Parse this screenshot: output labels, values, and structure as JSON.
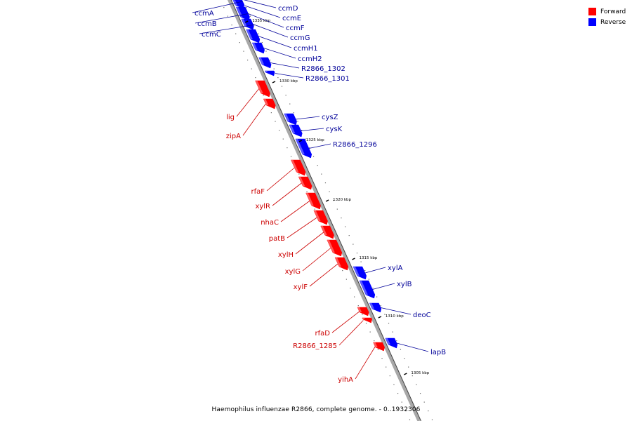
{
  "colors": {
    "forward": "#ff0000",
    "reverse": "#0000ff",
    "forward_label": "#cc0000",
    "reverse_label": "#000099",
    "backbone": "#a8a8a8",
    "backbone_edge": "#444444"
  },
  "legend": [
    {
      "label": "Forward",
      "color": "#ff0000"
    },
    {
      "label": "Reverse",
      "color": "#0000ff"
    }
  ],
  "caption": "Haemophilus influenzae R2866, complete genome. - 0..1932306",
  "ticks": [
    "1335 kbp",
    "1330 kbp",
    "1325 kbp",
    "1320 kbp",
    "1315 kbp",
    "1310 kbp",
    "1305 kbp"
  ],
  "genes": [
    {
      "name": "ccmA",
      "strand": "reverse"
    },
    {
      "name": "ccmB",
      "strand": "reverse"
    },
    {
      "name": "ccmC",
      "strand": "reverse"
    },
    {
      "name": "ccmD",
      "strand": "reverse"
    },
    {
      "name": "ccmE",
      "strand": "reverse"
    },
    {
      "name": "ccmF",
      "strand": "reverse"
    },
    {
      "name": "ccmG",
      "strand": "reverse"
    },
    {
      "name": "ccmH1",
      "strand": "reverse"
    },
    {
      "name": "ccmH2",
      "strand": "reverse"
    },
    {
      "name": "R2866_1302",
      "strand": "reverse"
    },
    {
      "name": "R2866_1301",
      "strand": "reverse"
    },
    {
      "name": "lig",
      "strand": "forward"
    },
    {
      "name": "zipA",
      "strand": "forward"
    },
    {
      "name": "cysZ",
      "strand": "reverse"
    },
    {
      "name": "cysK",
      "strand": "reverse"
    },
    {
      "name": "R2866_1296",
      "strand": "reverse"
    },
    {
      "name": "rfaF",
      "strand": "forward"
    },
    {
      "name": "xylR",
      "strand": "forward"
    },
    {
      "name": "nhaC",
      "strand": "forward"
    },
    {
      "name": "patB",
      "strand": "forward"
    },
    {
      "name": "xylH",
      "strand": "forward"
    },
    {
      "name": "xylG",
      "strand": "forward"
    },
    {
      "name": "xylF",
      "strand": "forward"
    },
    {
      "name": "xylA",
      "strand": "reverse"
    },
    {
      "name": "xylB",
      "strand": "reverse"
    },
    {
      "name": "deoC",
      "strand": "reverse"
    },
    {
      "name": "rfaD",
      "strand": "forward"
    },
    {
      "name": "R2866_1285",
      "strand": "forward"
    },
    {
      "name": "lapB",
      "strand": "reverse"
    },
    {
      "name": "yihA",
      "strand": "forward"
    }
  ]
}
